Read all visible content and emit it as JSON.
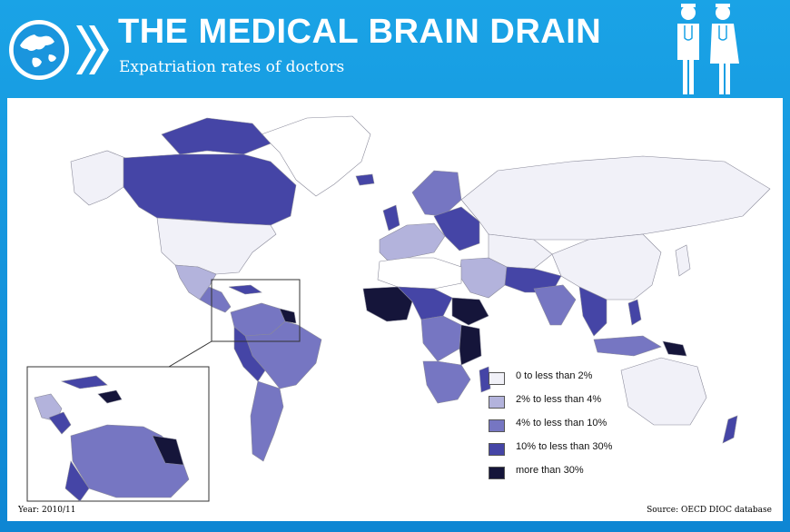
{
  "header": {
    "title": "THE MEDICAL BRAIN DRAIN",
    "subtitle": "Expatriation rates of doctors",
    "logo_icon": "globe-logo-icon",
    "doctors_icon": "doctors-icon"
  },
  "colors": {
    "band_0": "#f1f1f8",
    "band_1": "#b3b3dc",
    "band_2": "#7676c2",
    "band_3": "#4545a6",
    "band_4": "#15153a",
    "no_data": "#ffffff"
  },
  "legend": {
    "items": [
      {
        "label": "0 to less than 2%",
        "color": "#f1f1f8"
      },
      {
        "label": "2% to less than 4%",
        "color": "#b3b3dc"
      },
      {
        "label": "4% to less than 10%",
        "color": "#7676c2"
      },
      {
        "label": "10% to less than 30%",
        "color": "#4545a6"
      },
      {
        "label": "more than 30%",
        "color": "#15153a"
      }
    ]
  },
  "footer": {
    "year": "Year: 2010/11",
    "source": "Source: OECD DIOC database"
  }
}
